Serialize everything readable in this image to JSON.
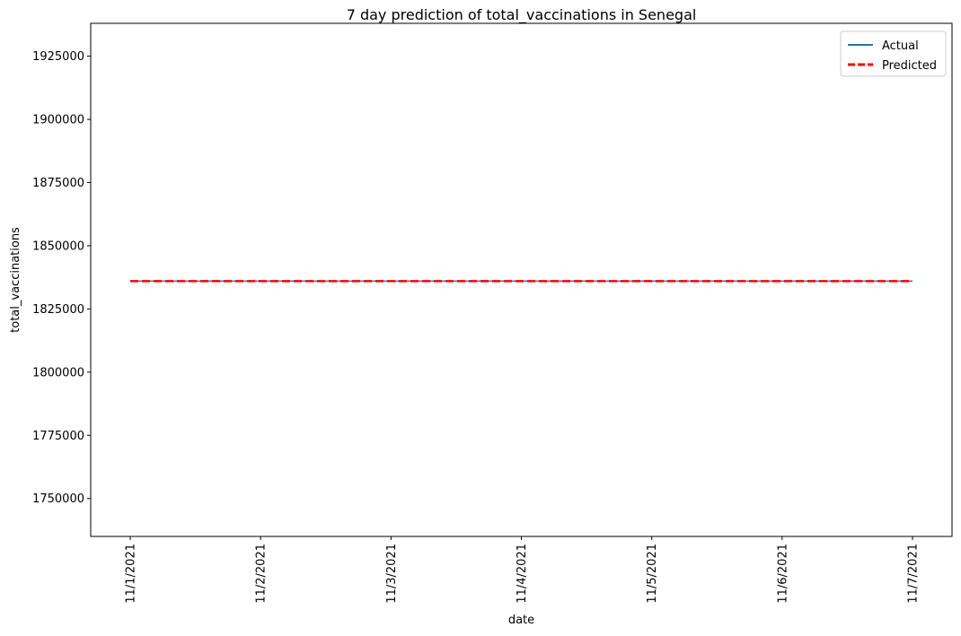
{
  "chart_data": {
    "type": "line",
    "title": "7 day prediction of total_vaccinations in Senegal",
    "xlabel": "date",
    "ylabel": "total_vaccinations",
    "categories": [
      "11/1/2021",
      "11/2/2021",
      "11/3/2021",
      "11/4/2021",
      "11/5/2021",
      "11/6/2021",
      "11/7/2021"
    ],
    "ylim": [
      1735000,
      1938000
    ],
    "yticks": [
      1750000,
      1775000,
      1800000,
      1825000,
      1850000,
      1875000,
      1900000,
      1925000
    ],
    "ytick_labels": [
      "1750000",
      "1775000",
      "1800000",
      "1825000",
      "1850000",
      "1875000",
      "1900000",
      "1925000"
    ],
    "grid": false,
    "legend_position": "top-right",
    "series": [
      {
        "name": "Actual",
        "color": "#1f77b4",
        "style": "solid",
        "values": [
          1836000,
          1836000,
          1836000,
          1836000,
          1836000,
          1836000,
          1836000
        ]
      },
      {
        "name": "Predicted",
        "color": "#ff0000",
        "style": "dashed",
        "values": [
          1836000,
          1836000,
          1836000,
          1836000,
          1836000,
          1836000,
          1836000
        ]
      }
    ]
  }
}
